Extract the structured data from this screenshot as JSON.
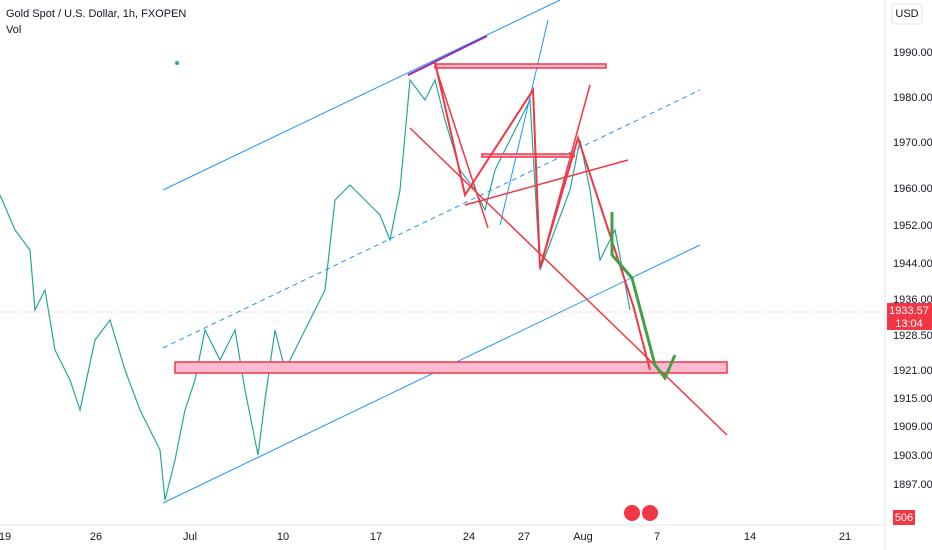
{
  "header": {
    "title": "Gold Spot / U.S. Dollar, 1h, FXOPEN",
    "indicator": "Vol"
  },
  "price_axis": {
    "currency": "USD",
    "labels": [
      "1990.00",
      "1980.00",
      "1970.00",
      "1960.00",
      "1952.00",
      "1944.00",
      "1936.00",
      "1928.50",
      "1921.00",
      "1915.00",
      "1909.00",
      "1903.00",
      "1897.00"
    ],
    "current_price": "1933.57",
    "countdown": "13:04",
    "volume": "506"
  },
  "time_axis": {
    "labels": [
      "19",
      "26",
      "Jul",
      "10",
      "17",
      "24",
      "27",
      "Aug",
      "7",
      "14",
      "21"
    ]
  }
}
